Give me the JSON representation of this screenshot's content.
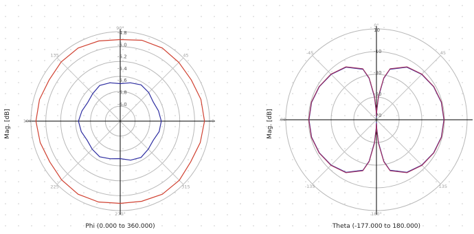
{
  "chart_data": [
    {
      "type": "polar-line",
      "xlabel": "Phi (0.000 to 360.000)",
      "ylabel": "Mag. [dB]",
      "r_ticks": [
        "-4.8",
        "-5.0",
        "-5.2",
        "-5.4",
        "-5.6",
        "-5.8",
        "-6.0"
      ],
      "rlim": [
        -6.0,
        -4.76
      ],
      "angle_labels": [
        {
          "deg": 90,
          "text": "90°"
        },
        {
          "deg": 180,
          "text": "180"
        },
        {
          "deg": 270,
          "text": "270°"
        },
        {
          "deg": 0,
          "text": "0"
        },
        {
          "deg": 45,
          "text": "45"
        },
        {
          "deg": 135,
          "text": "135"
        },
        {
          "deg": 225,
          "text": "225"
        },
        {
          "deg": 315,
          "text": "315"
        }
      ],
      "series": [
        {
          "color": "#d04030",
          "values_db": [
            -4.83,
            -4.84,
            -4.86,
            -4.85,
            -4.83,
            -4.84,
            -4.87,
            -4.85,
            -4.83,
            -4.84,
            -4.86,
            -4.84,
            -4.83,
            -4.85,
            -4.87,
            -4.85,
            -4.83,
            -4.84,
            -4.86,
            -4.85,
            -4.83,
            -4.84,
            -4.87,
            -4.85
          ]
        },
        {
          "color": "#2c2ca0",
          "values_db": [
            -5.43,
            -5.45,
            -5.47,
            -5.44,
            -5.42,
            -5.45,
            -5.48,
            -5.45,
            -5.43,
            -5.46,
            -5.48,
            -5.45,
            -5.42,
            -5.44,
            -5.47,
            -5.45,
            -5.43,
            -5.46,
            -5.48,
            -5.44,
            -5.42,
            -5.45,
            -5.47,
            -5.44
          ]
        }
      ]
    },
    {
      "type": "polar-line",
      "xlabel": "Theta (-177.000 to 180.000)",
      "ylabel": "Mag. [dB]",
      "r_ticks": [
        "10",
        "-10",
        "-30",
        "-50",
        "-70"
      ],
      "rlim": [
        -70,
        10
      ],
      "angle_labels": [
        {
          "deg": 90,
          "text": "0°"
        },
        {
          "deg": 180,
          "text": "-90"
        },
        {
          "deg": 270,
          "text": "180°"
        },
        {
          "deg": 45,
          "text": "45"
        },
        {
          "deg": 135,
          "text": "-45"
        },
        {
          "deg": 225,
          "text": "-135"
        },
        {
          "deg": 315,
          "text": "135"
        }
      ],
      "series": [
        {
          "color": "#2c2ca0",
          "theta_deg": [
            0,
            15,
            30,
            45,
            60,
            75,
            80,
            85,
            88,
            90,
            92,
            95,
            100,
            105,
            120,
            135,
            150,
            165,
            180,
            195,
            210,
            225,
            240,
            255,
            260,
            265,
            268,
            270,
            272,
            275,
            280,
            285,
            300,
            315,
            330,
            345,
            360
          ],
          "values_db": [
            -10.5,
            -10.8,
            -11.8,
            -13.5,
            -16.5,
            -24,
            -33,
            -50,
            -62,
            -68,
            -62,
            -50,
            -33,
            -24,
            -16.5,
            -13.5,
            -11.8,
            -10.8,
            -10.5,
            -10.8,
            -11.8,
            -13.5,
            -16.5,
            -24,
            -33,
            -50,
            -62,
            -68,
            -62,
            -50,
            -33,
            -24,
            -16.5,
            -13.5,
            -11.8,
            -10.8,
            -10.5
          ]
        },
        {
          "color": "#a03060",
          "theta_deg": [
            0,
            15,
            30,
            45,
            60,
            75,
            80,
            85,
            88,
            90,
            92,
            95,
            100,
            105,
            120,
            135,
            150,
            165,
            180,
            195,
            210,
            225,
            240,
            255,
            260,
            265,
            268,
            270,
            272,
            275,
            280,
            285,
            300,
            315,
            330,
            345,
            360
          ],
          "values_db": [
            -10.3,
            -10.6,
            -11.6,
            -13.3,
            -16.2,
            -23.5,
            -32.5,
            -49,
            -61,
            -67,
            -61,
            -49,
            -32.5,
            -23.5,
            -16.2,
            -13.3,
            -11.6,
            -10.6,
            -10.3,
            -10.6,
            -11.6,
            -13.3,
            -16.2,
            -23.5,
            -32.5,
            -49,
            -61,
            -67,
            -61,
            -49,
            -32.5,
            -23.5,
            -16.2,
            -13.3,
            -11.6,
            -10.6,
            -10.3
          ]
        }
      ]
    }
  ]
}
